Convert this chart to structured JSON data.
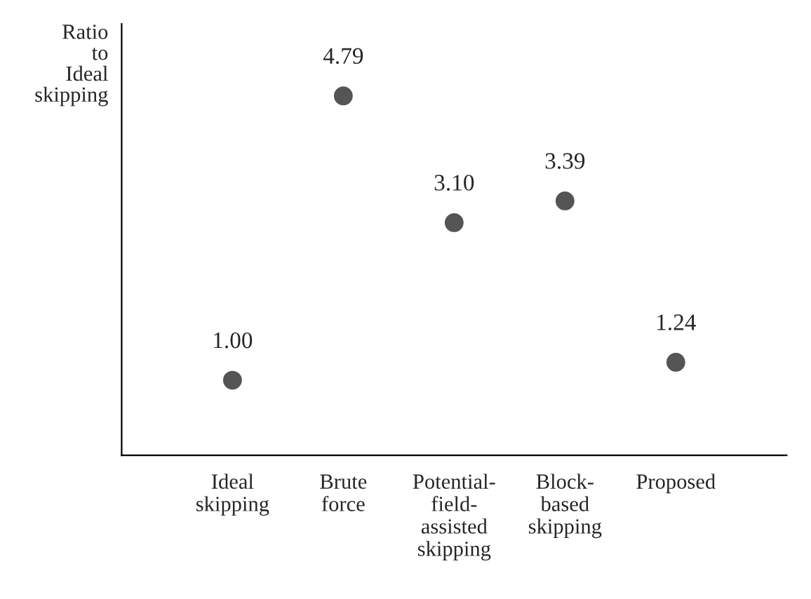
{
  "chart_data": {
    "type": "scatter",
    "ylabel": "Ratio\nto\nIdeal\nskipping",
    "categories": [
      "Ideal\nskipping",
      "Brute\nforce",
      "Potential-\nfield-\nassisted\nskipping",
      "Block-\nbased\nskipping",
      "Proposed"
    ],
    "series": [
      {
        "color": "#555555",
        "values": [
          1.0,
          4.79,
          3.1,
          3.39,
          1.24
        ],
        "value_labels": [
          "1.00",
          "4.79",
          "3.10",
          "3.39",
          "1.24"
        ]
      }
    ],
    "marker": "circle",
    "grid": false,
    "legend": false
  }
}
